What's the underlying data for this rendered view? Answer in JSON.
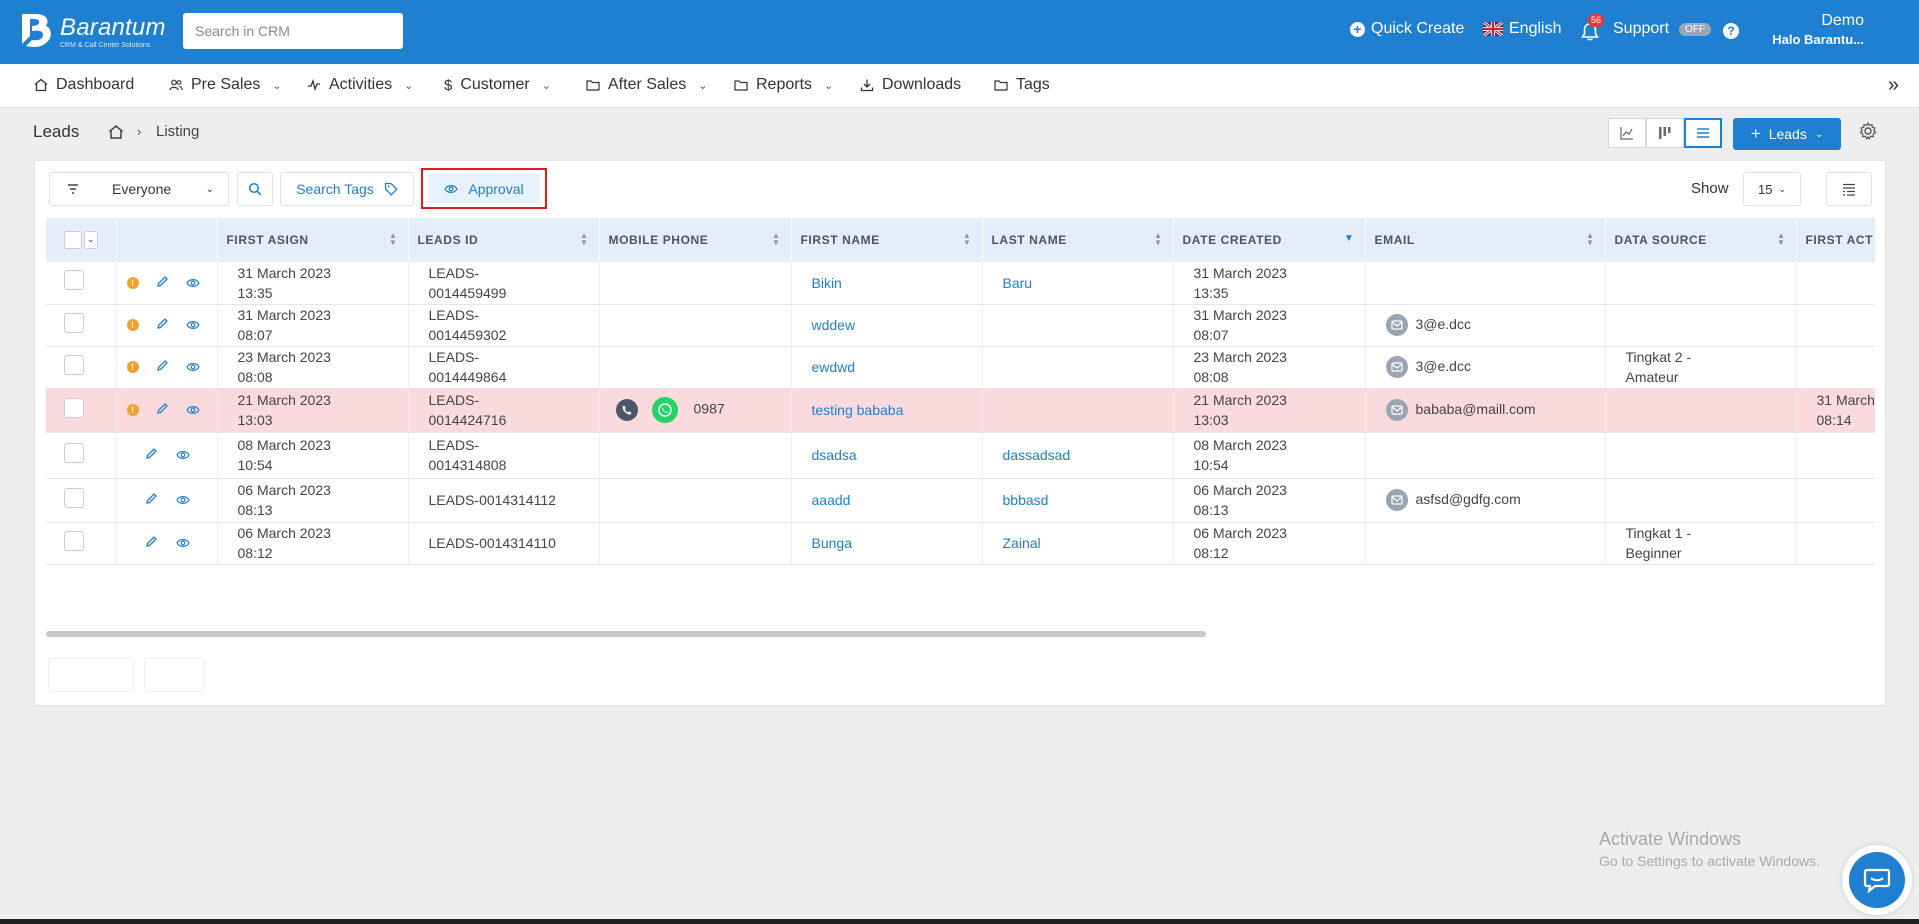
{
  "app": {
    "logo_text": "Barantum",
    "logo_sub": "CRM & Call Center Solutions",
    "search_placeholder": "Search in CRM"
  },
  "topbar": {
    "quick_create": "Quick Create",
    "language": "English",
    "notifications_count": "56",
    "support_label": "Support",
    "support_toggle": "OFF",
    "user_name": "Demo",
    "user_sub": "Halo Barantu..."
  },
  "nav": {
    "items": [
      {
        "label": "Dashboard",
        "icon": "home-icon"
      },
      {
        "label": "Pre Sales",
        "icon": "users-icon"
      },
      {
        "label": "Activities",
        "icon": "activity-icon"
      },
      {
        "label": "Customer",
        "icon": "dollar-icon"
      },
      {
        "label": "After Sales",
        "icon": "folder-icon"
      },
      {
        "label": "Reports",
        "icon": "folder-icon"
      },
      {
        "label": "Downloads",
        "icon": "download-icon"
      },
      {
        "label": "Tags",
        "icon": "folder-icon"
      }
    ]
  },
  "breadcrumb": {
    "title": "Leads",
    "current": "Listing"
  },
  "toolbar": {
    "add_button": "Leads",
    "filter_value": "Everyone",
    "search_tags": "Search Tags",
    "approval": "Approval",
    "show_label": "Show",
    "show_value": "15"
  },
  "table": {
    "columns": [
      "FIRST ASIGN",
      "LEADS ID",
      "MOBILE PHONE",
      "FIRST NAME",
      "LAST NAME",
      "DATE CREATED",
      "EMAIL",
      "DATA SOURCE",
      "FIRST ACT"
    ],
    "rows": [
      {
        "info": true,
        "first_asign": [
          "31 March 2023",
          "13:35"
        ],
        "leads_id": [
          "LEADS-",
          "0014459499"
        ],
        "phone": "",
        "first_name": "Bikin",
        "last_name": "Baru",
        "date_created": [
          "31 March 2023",
          "13:35"
        ],
        "email": "",
        "data_source": [
          "",
          ""
        ],
        "first_act": [
          "",
          ""
        ]
      },
      {
        "info": true,
        "first_asign": [
          "31 March 2023",
          "08:07"
        ],
        "leads_id": [
          "LEADS-",
          "0014459302"
        ],
        "phone": "",
        "first_name": "wddew",
        "last_name": "",
        "date_created": [
          "31 March 2023",
          "08:07"
        ],
        "email": "3@e.dcc",
        "data_source": [
          "",
          ""
        ],
        "first_act": [
          "",
          ""
        ]
      },
      {
        "info": true,
        "first_asign": [
          "23 March 2023",
          "08:08"
        ],
        "leads_id": [
          "LEADS-",
          "0014449864"
        ],
        "phone": "",
        "first_name": "ewdwd",
        "last_name": "",
        "date_created": [
          "23 March 2023",
          "08:08"
        ],
        "email": "3@e.dcc",
        "data_source": [
          "Tingkat 2 -",
          "Amateur"
        ],
        "first_act": [
          "",
          ""
        ]
      },
      {
        "info": true,
        "highlight": true,
        "first_asign": [
          "21 March 2023",
          "13:03"
        ],
        "leads_id": [
          "LEADS-",
          "0014424716"
        ],
        "phone": "0987",
        "first_name": "testing bababa",
        "last_name": "",
        "date_created": [
          "21 March 2023",
          "13:03"
        ],
        "email": "bababa@maill.com",
        "data_source": [
          "",
          ""
        ],
        "first_act": [
          "31 March",
          "08:14"
        ]
      },
      {
        "info": false,
        "first_asign": [
          "08 March 2023",
          "10:54"
        ],
        "leads_id": [
          "LEADS-",
          "0014314808"
        ],
        "phone": "",
        "first_name": "dsadsa",
        "last_name": "dassadsad",
        "date_created": [
          "08 March 2023",
          "10:54"
        ],
        "email": "",
        "data_source": [
          "",
          ""
        ],
        "first_act": [
          "",
          ""
        ]
      },
      {
        "info": false,
        "first_asign": [
          "06 March 2023",
          "08:13"
        ],
        "leads_id": [
          "LEADS-0014314112",
          ""
        ],
        "phone": "",
        "first_name": "aaadd",
        "last_name": "bbbasd",
        "date_created": [
          "06 March 2023",
          "08:13"
        ],
        "email": "asfsd@gdfg.com",
        "data_source": [
          "",
          ""
        ],
        "first_act": [
          "",
          ""
        ]
      },
      {
        "info": false,
        "first_asign": [
          "06 March 2023",
          "08:12"
        ],
        "leads_id": [
          "LEADS-0014314110",
          ""
        ],
        "phone": "",
        "first_name": "Bunga",
        "last_name": "Zainal",
        "date_created": [
          "06 March 2023",
          "08:12"
        ],
        "email": "",
        "data_source": [
          "Tingkat 1 -",
          "Beginner"
        ],
        "first_act": [
          "",
          ""
        ]
      }
    ]
  },
  "watermark": {
    "line1": "Activate Windows",
    "line2": "Go to Settings to activate Windows."
  },
  "colors": {
    "brand": "#1f7fd0",
    "highlight_row": "#fadadd",
    "approval_outline": "#e01b1b"
  }
}
